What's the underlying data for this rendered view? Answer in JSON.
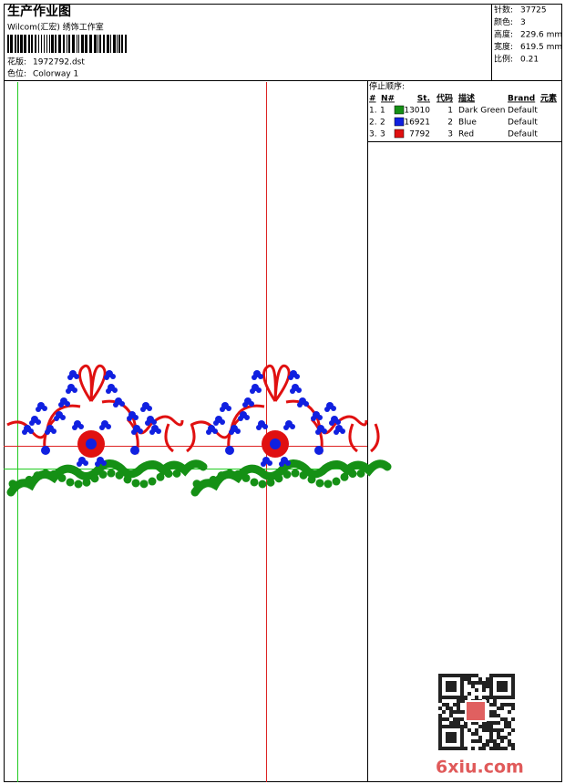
{
  "header": {
    "title": "生产作业图",
    "studio": "Wilcom(汇宏) 绣饰工作室",
    "design_label": "花版:",
    "design": "1972792.dst",
    "colorway_label": "色位:",
    "colorway": "Colorway 1"
  },
  "info": [
    {
      "label": "针数:",
      "value": "37725"
    },
    {
      "label": "颜色:",
      "value": "3"
    },
    {
      "label": "高度:",
      "value": "229.6 mm"
    },
    {
      "label": "宽度:",
      "value": "619.5 mm"
    },
    {
      "label": "比例:",
      "value": "0.21"
    }
  ],
  "table": {
    "title": "停止顺序:",
    "columns": [
      "#",
      "N#",
      "St.",
      "代码",
      "描述",
      "Brand",
      "元素"
    ],
    "rows": [
      {
        "index": "1.",
        "n": "1",
        "color": "#159015",
        "stitches": "13010",
        "code": "1",
        "name": "Dark Green",
        "brand": "Default"
      },
      {
        "index": "2.",
        "n": "2",
        "color": "#1020e0",
        "stitches": "16921",
        "code": "2",
        "name": "Blue",
        "brand": "Default"
      },
      {
        "index": "3.",
        "n": "3",
        "color": "#e01010",
        "stitches": "7792",
        "code": "3",
        "name": "Red",
        "brand": "Default"
      }
    ]
  },
  "watermark": "6xiu.com"
}
